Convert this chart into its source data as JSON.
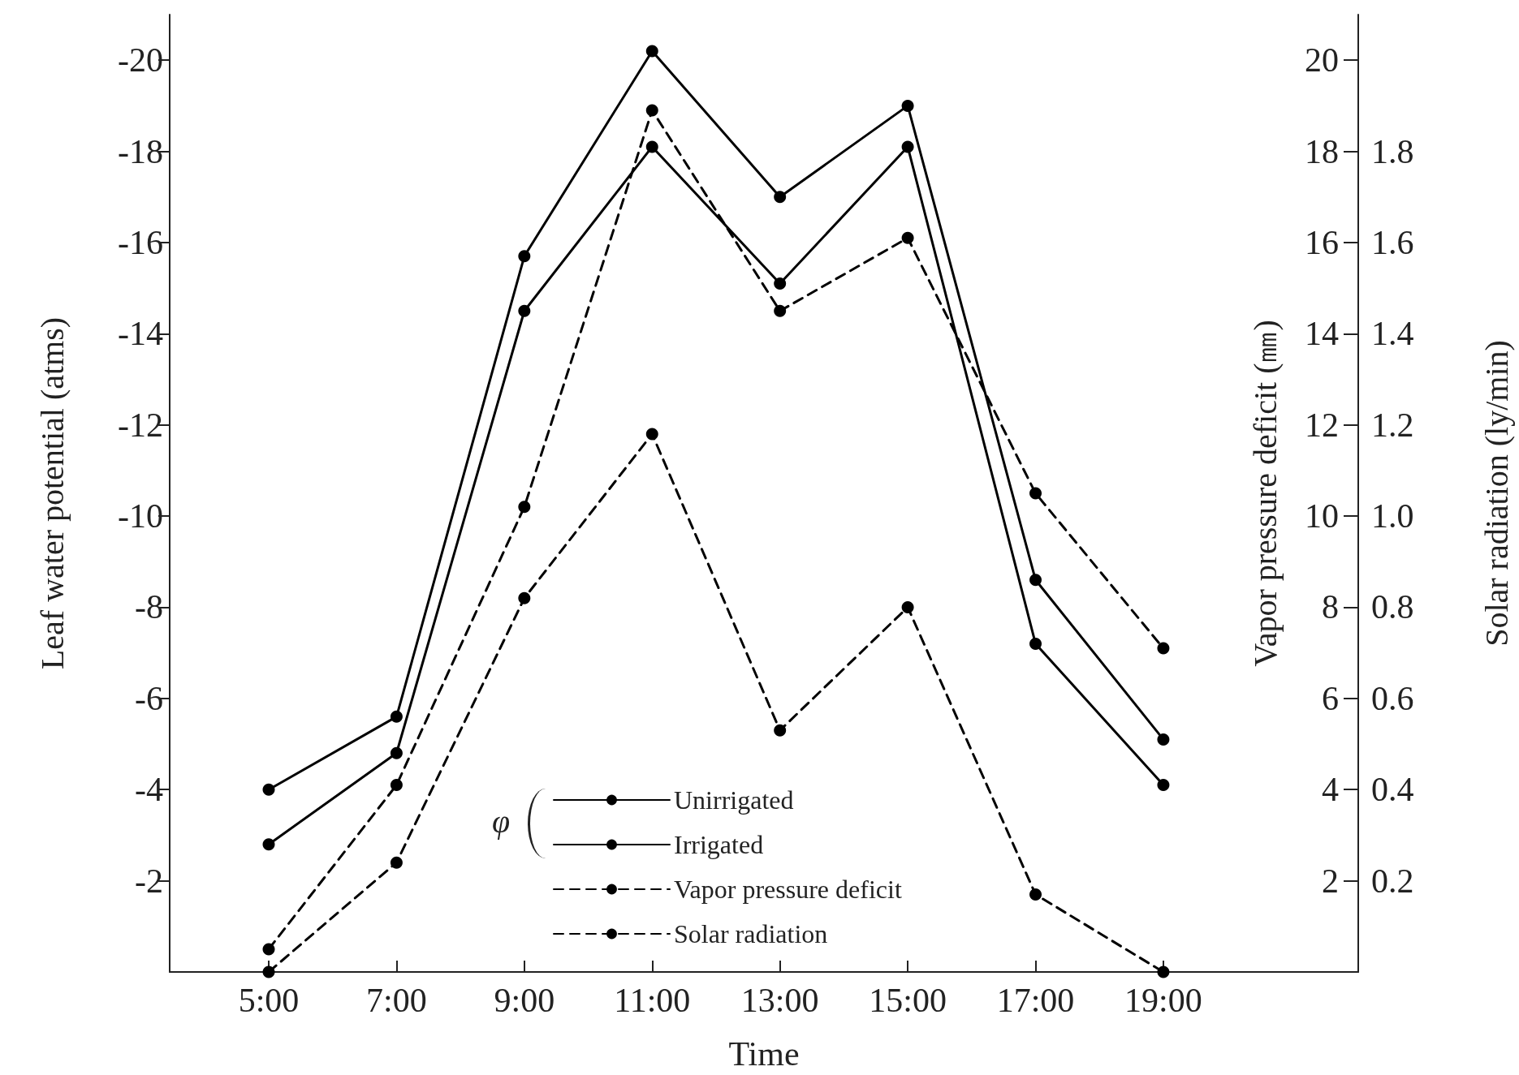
{
  "chart_data": {
    "type": "line",
    "xlabel": "Time",
    "ylabel": "Leaf water potential (atms)",
    "y2label": "Vapor pressure deficit (㎜)",
    "y3label": "Solar radiation (ly/min)",
    "legend_title": "φ",
    "x": [
      5,
      7,
      9,
      11,
      13,
      15,
      17,
      19
    ],
    "xlim": [
      3.45,
      22.05
    ],
    "xticks": [
      {
        "value": 5,
        "label": "5:00"
      },
      {
        "value": 7,
        "label": "7:00"
      },
      {
        "value": 9,
        "label": "9:00"
      },
      {
        "value": 11,
        "label": "11:00"
      },
      {
        "value": 13,
        "label": "13:00"
      },
      {
        "value": 15,
        "label": "15:00"
      },
      {
        "value": 17,
        "label": "17:00"
      },
      {
        "value": 19,
        "label": "19:00"
      }
    ],
    "ylim": [
      0,
      -21
    ],
    "yticks": [
      -2,
      -4,
      -6,
      -8,
      -10,
      -12,
      -14,
      -16,
      -18,
      -20
    ],
    "y2lim": [
      0,
      21
    ],
    "y2ticks": [
      2,
      4,
      6,
      8,
      10,
      12,
      14,
      16,
      18,
      20
    ],
    "y3lim": [
      0,
      2.1
    ],
    "y3ticks": [
      0.2,
      0.4,
      0.6,
      0.8,
      {
        "value": 1,
        "label": "1.0"
      },
      1.2,
      1.4,
      1.6,
      1.8
    ],
    "marker": "circle",
    "legend": "bottom",
    "grid": false,
    "series": [
      {
        "name": "Unirrigated",
        "color": "#000000",
        "line_style": "solid",
        "values": [
          -4.0,
          -5.6,
          -15.7,
          -20.2,
          -17.0,
          -19.0,
          -8.6,
          -5.1
        ]
      },
      {
        "name": "Irrigated",
        "color": "#000000",
        "line_style": "solid",
        "values": [
          -2.8,
          -4.8,
          -14.5,
          -18.1,
          -15.1,
          -18.1,
          -7.2,
          -4.1
        ]
      },
      {
        "name": "Vapor pressure deficit",
        "color": "#000000",
        "line_style": "dashed",
        "axis": "y2",
        "values": [
          0.5,
          4.1,
          10.2,
          18.9,
          14.5,
          16.1,
          10.5,
          7.1
        ]
      },
      {
        "name": "Solar radiation",
        "color": "#000000",
        "line_style": "dashed",
        "axis": "y3",
        "values": [
          0.0,
          0.24,
          0.82,
          1.18,
          0.53,
          0.8,
          0.17,
          0.0
        ]
      }
    ]
  }
}
